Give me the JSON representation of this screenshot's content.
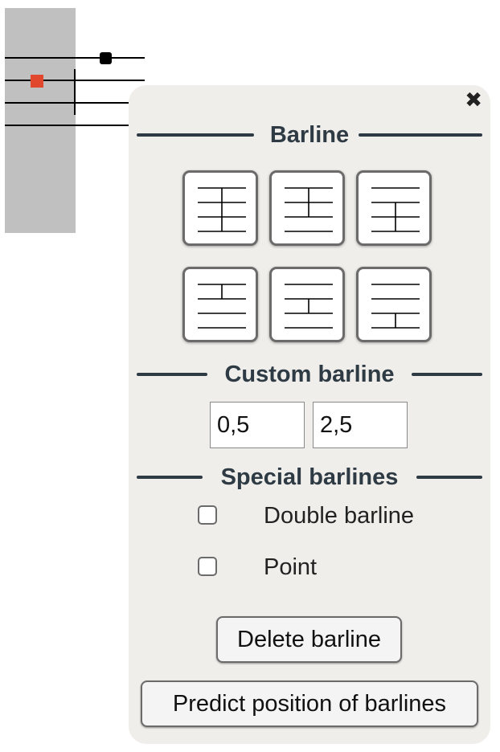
{
  "panel": {
    "close_icon": "close-icon",
    "sections": {
      "barline": "Barline",
      "custom": "Custom barline",
      "special": "Special barlines"
    },
    "barline_buttons": [
      {
        "icon": "barline-full-icon"
      },
      {
        "icon": "barline-middle-icon"
      },
      {
        "icon": "barline-lower-icon"
      },
      {
        "icon": "barline-top-icon"
      },
      {
        "icon": "barline-center-icon"
      },
      {
        "icon": "barline-bottom-icon"
      }
    ],
    "custom_inputs": {
      "start": "0,5",
      "end": "2,5"
    },
    "checkboxes": [
      {
        "label": "Double barline",
        "checked": false
      },
      {
        "label": "Point",
        "checked": false
      }
    ],
    "delete_button": "Delete barline",
    "predict_button": "Predict position of barlines"
  },
  "colors": {
    "panel_bg": "#efeeea",
    "header_text": "#2e3a44",
    "selection_box": "#c0c0c0",
    "marker_red": "#e0472c"
  }
}
